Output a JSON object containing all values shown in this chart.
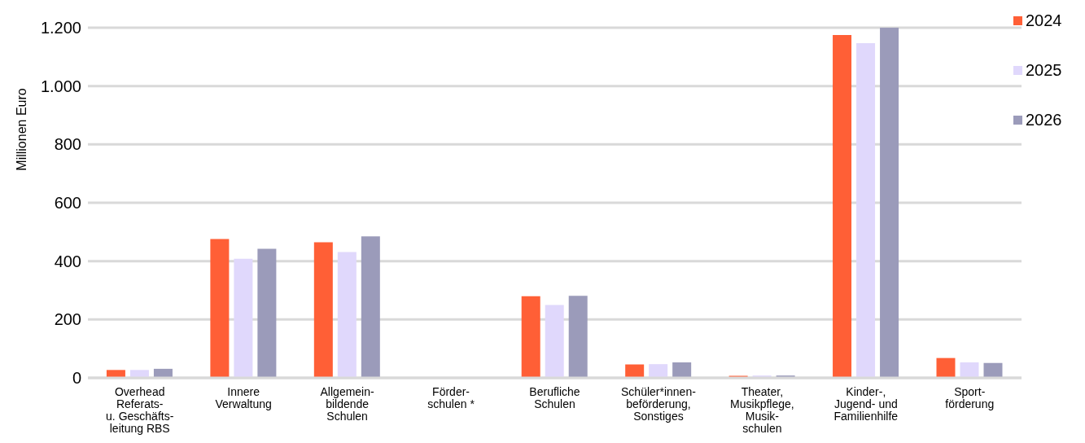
{
  "chart_data": {
    "type": "bar",
    "ylabel": "Millionen Euro",
    "categories": [
      "Overhead\nReferats-\nu. Geschäfts-\nleitung RBS",
      "Innere\nVerwaltung",
      "Allgemein-\nbildende\nSchulen",
      "Förder-\nschulen *",
      "Berufliche\nSchulen",
      "Schüler*innen-\nbeförderung,\nSonstiges",
      "Theater,\nMusikpflege,\nMusik-\nschulen",
      "Kinder-,\nJugend- und\nFamilienhilfe",
      "Sport-\nförderung"
    ],
    "series": [
      {
        "name": "2024",
        "color": "#ff5f36",
        "values": [
          27,
          476,
          465,
          null,
          280,
          46,
          7,
          1175,
          68
        ]
      },
      {
        "name": "2025",
        "color": "#e0d8fc",
        "values": [
          27,
          408,
          431,
          null,
          250,
          47,
          8,
          1147,
          53
        ]
      },
      {
        "name": "2026",
        "color": "#9b9bba",
        "values": [
          31,
          442,
          485,
          null,
          281,
          53,
          8,
          1200,
          51
        ]
      }
    ],
    "ylim": [
      0,
      1200
    ],
    "yticks": [
      0,
      200,
      400,
      600,
      800,
      {
        "value": 1000,
        "label": "1.000"
      },
      {
        "value": 1200,
        "label": "1.200"
      }
    ],
    "grid": "y",
    "legend": "top right"
  }
}
